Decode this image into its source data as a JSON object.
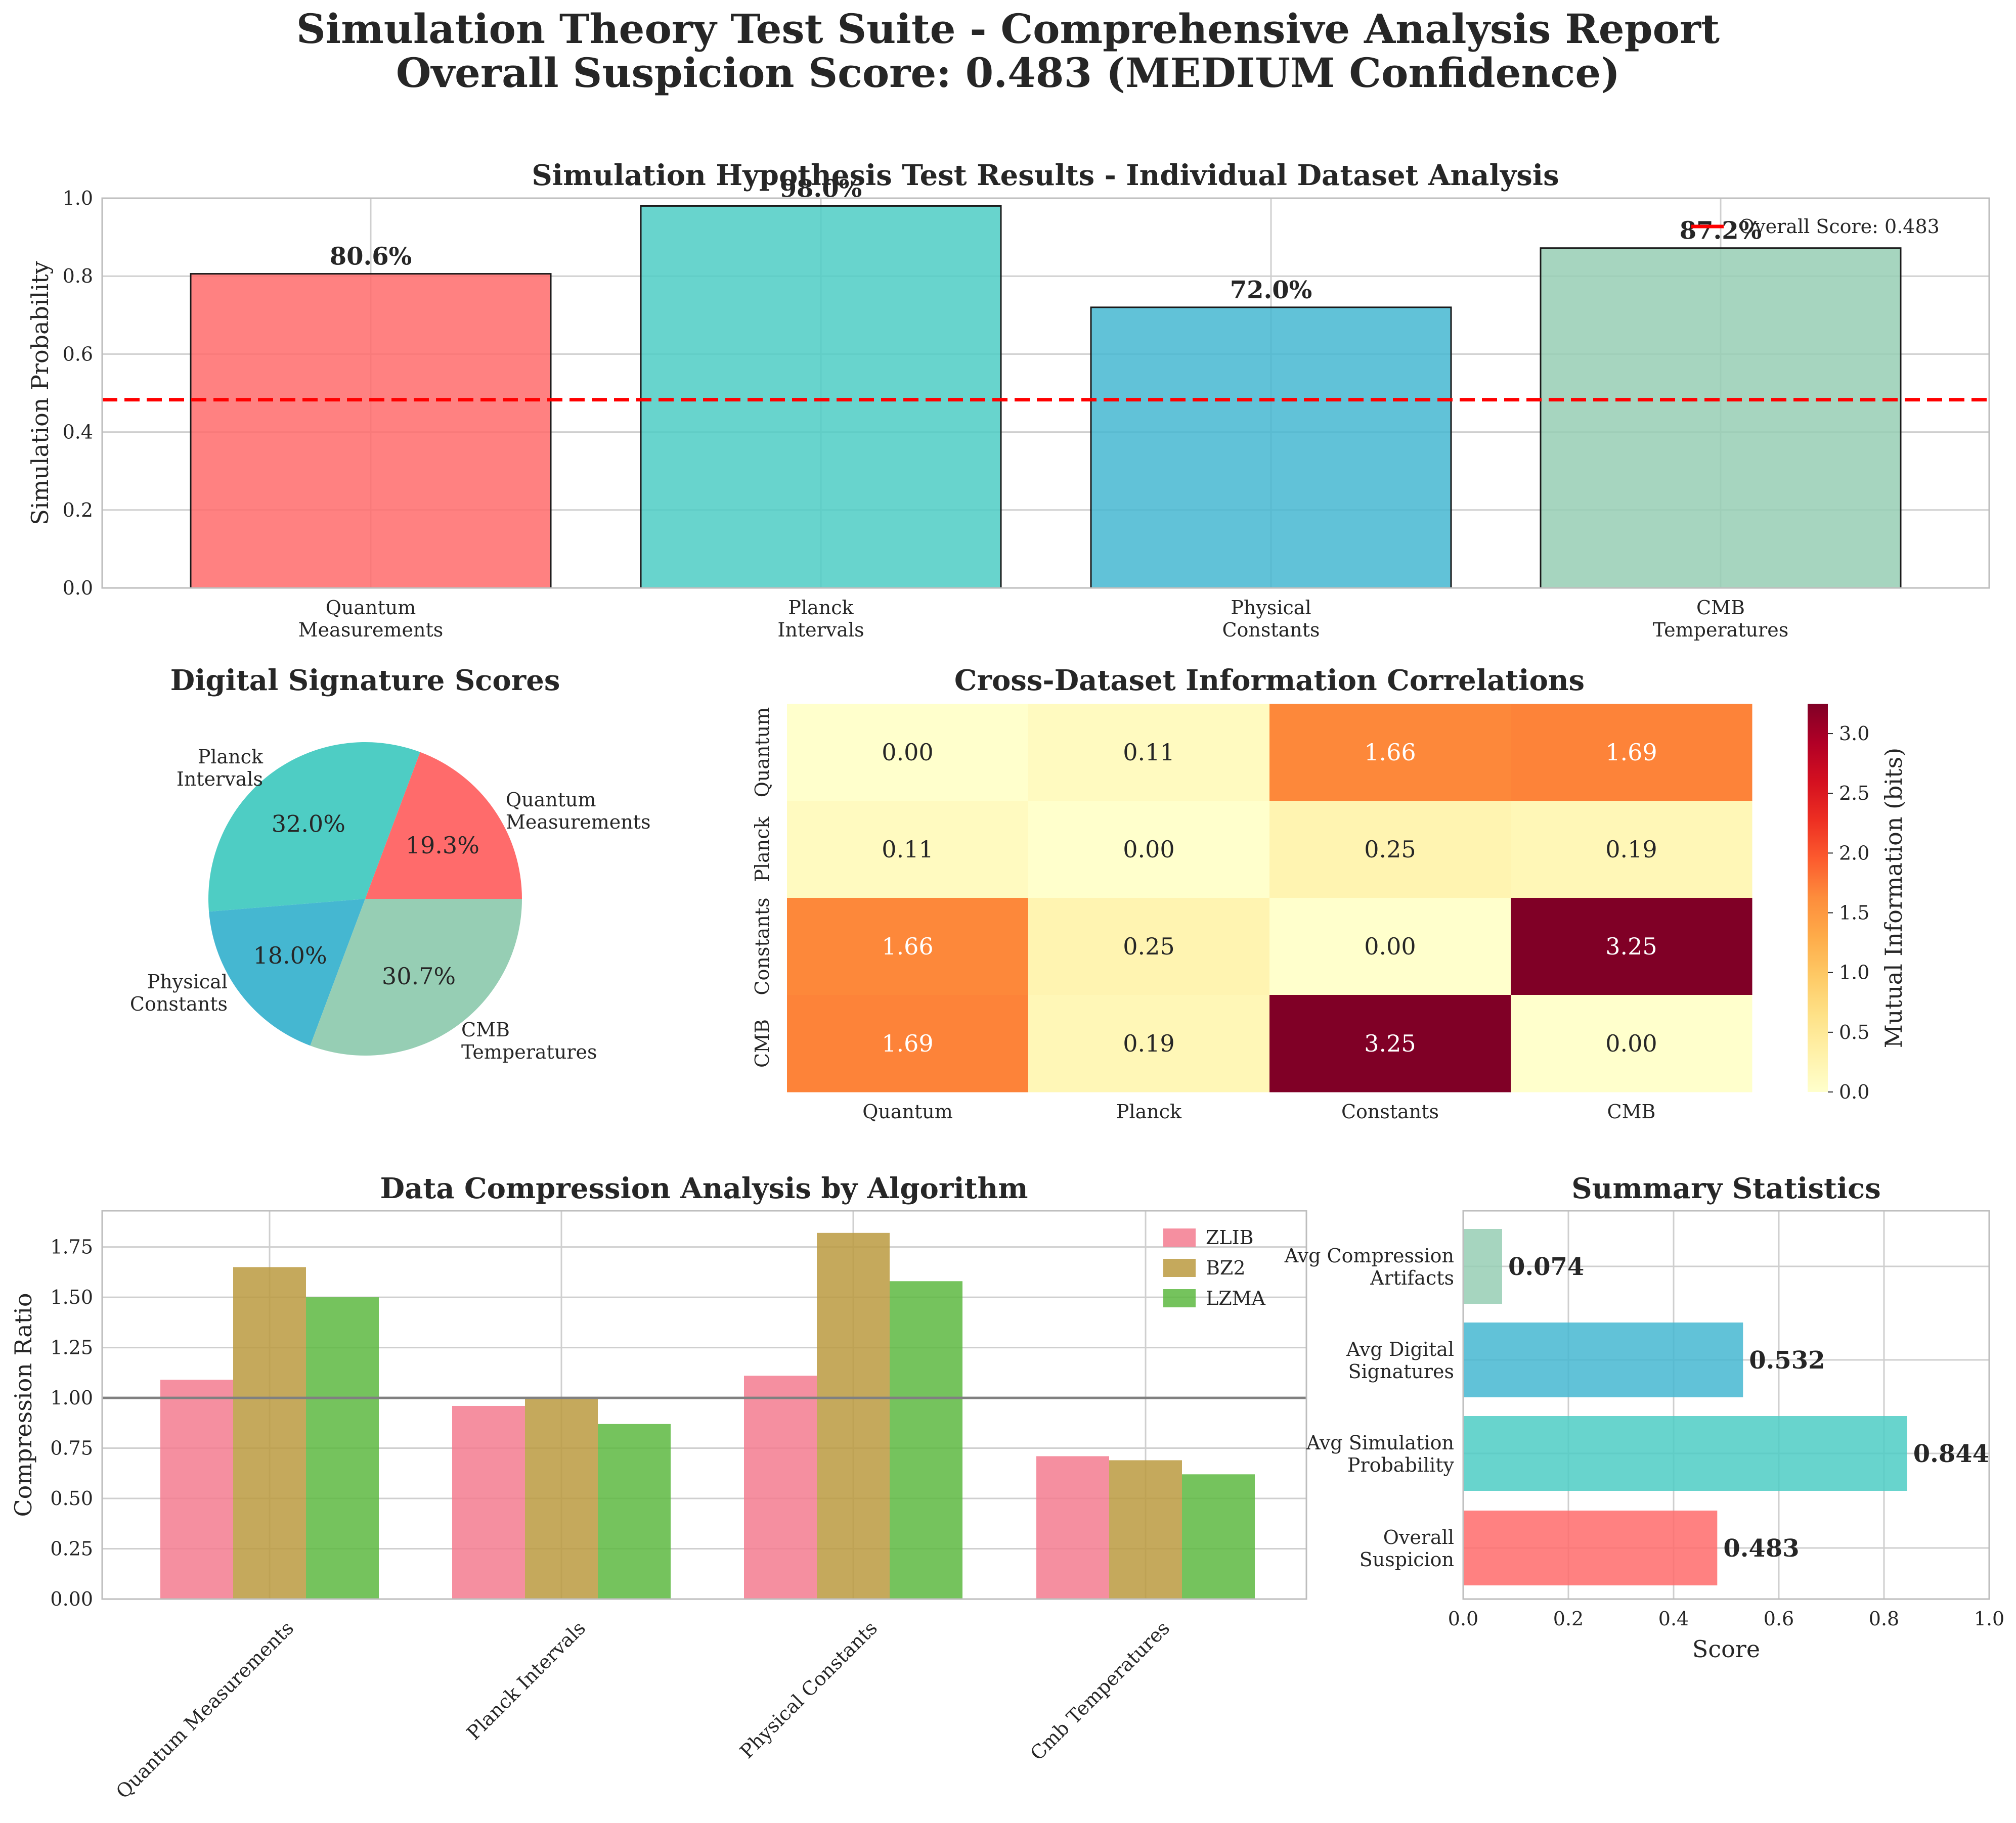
{
  "title_line1": "Simulation Theory Test Suite - Comprehensive Analysis Report",
  "title_line2": "Overall Suspicion Score: 0.483 (MEDIUM Confidence)",
  "chart_data": [
    {
      "type": "bar",
      "title": "Simulation Hypothesis Test Results - Individual Dataset Analysis",
      "ylabel": "Simulation Probability",
      "categories": [
        "Quantum\nMeasurements",
        "Planck\nIntervals",
        "Physical\nConstants",
        "CMB\nTemperatures"
      ],
      "values": [
        0.806,
        0.98,
        0.72,
        0.872
      ],
      "value_labels": [
        "80.6%",
        "98.0%",
        "72.0%",
        "87.2%"
      ],
      "colors": [
        "#ff6b6b",
        "#4ecdc4",
        "#45b7d1",
        "#96ceb4"
      ],
      "ylim": [
        0,
        1
      ],
      "yticks": [
        "0.0",
        "0.2",
        "0.4",
        "0.6",
        "0.8",
        "1.0"
      ],
      "reference_line": {
        "value": 0.483,
        "label": "Overall Score: 0.483",
        "color": "#ff0000"
      },
      "grid": true,
      "legend": "top-right"
    },
    {
      "type": "pie",
      "title": "Digital Signature Scores",
      "labels": [
        "Quantum\nMeasurements",
        "Planck\nIntervals",
        "Physical\nConstants",
        "CMB\nTemperatures"
      ],
      "values": [
        19.3,
        32.0,
        18.0,
        30.7
      ],
      "pct_labels": [
        "19.3%",
        "32.0%",
        "18.0%",
        "30.7%"
      ],
      "colors": [
        "#ff6b6b",
        "#4ecdc4",
        "#45b7d1",
        "#96ceb4"
      ]
    },
    {
      "type": "heatmap",
      "title": "Cross-Dataset Information Correlations",
      "x_labels": [
        "Quantum",
        "Planck",
        "Constants",
        "CMB"
      ],
      "y_labels": [
        "Quantum",
        "Planck",
        "Constants",
        "CMB"
      ],
      "matrix": [
        [
          0.0,
          0.11,
          1.66,
          1.69
        ],
        [
          0.11,
          0.0,
          0.25,
          0.19
        ],
        [
          1.66,
          0.25,
          0.0,
          3.25
        ],
        [
          1.69,
          0.19,
          3.25,
          0.0
        ]
      ],
      "cell_labels": [
        [
          "0.00",
          "0.11",
          "1.66",
          "1.69"
        ],
        [
          "0.11",
          "0.00",
          "0.25",
          "0.19"
        ],
        [
          "1.66",
          "0.25",
          "0.00",
          "3.25"
        ],
        [
          "1.69",
          "0.19",
          "3.25",
          "0.00"
        ]
      ],
      "colorbar_label": "Mutual Information (bits)",
      "colorbar_ticks": [
        "0.0",
        "0.5",
        "1.0",
        "1.5",
        "2.0",
        "2.5",
        "3.0"
      ],
      "vmin": 0,
      "vmax": 3.25,
      "colormap": "YlOrRd"
    },
    {
      "type": "bar",
      "title": "Data Compression Analysis by Algorithm",
      "ylabel": "Compression Ratio",
      "categories": [
        "Quantum Measurements",
        "Planck Intervals",
        "Physical Constants",
        "Cmb Temperatures"
      ],
      "series": [
        {
          "name": "ZLIB",
          "values": [
            1.09,
            0.96,
            1.11,
            0.71
          ],
          "color": "#f37b8f"
        },
        {
          "name": "BZ2",
          "values": [
            1.65,
            1.0,
            1.82,
            0.69
          ],
          "color": "#bb9a40"
        },
        {
          "name": "LZMA",
          "values": [
            1.5,
            0.87,
            1.58,
            0.62
          ],
          "color": "#5db841"
        }
      ],
      "ylim": [
        0,
        1.93
      ],
      "yticks": [
        "0.00",
        "0.25",
        "0.50",
        "0.75",
        "1.00",
        "1.25",
        "1.50",
        "1.75"
      ],
      "reference_line": {
        "value": 1.0,
        "color": "#808080"
      },
      "grid": true,
      "legend": "top-right"
    },
    {
      "type": "bar",
      "orientation": "horizontal",
      "title": "Summary Statistics",
      "xlabel": "Score",
      "categories": [
        "Overall\nSuspicion",
        "Avg Simulation\nProbability",
        "Avg Digital\nSignatures",
        "Avg Compression\nArtifacts"
      ],
      "values": [
        0.483,
        0.844,
        0.532,
        0.074
      ],
      "value_labels": [
        "0.483",
        "0.844",
        "0.532",
        "0.074"
      ],
      "colors": [
        "#ff6b6b",
        "#4ecdc4",
        "#45b7d1",
        "#96ceb4"
      ],
      "xlim": [
        0,
        1
      ],
      "xticks": [
        "0.0",
        "0.2",
        "0.4",
        "0.6",
        "0.8",
        "1.0"
      ],
      "grid": true
    }
  ]
}
